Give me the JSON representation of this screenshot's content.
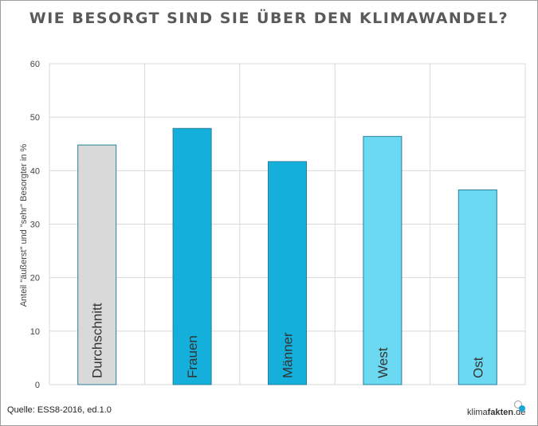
{
  "chart_data": {
    "type": "bar",
    "title": "WIE BESORGT SIND SIE ÜBER DEN KLIMAWANDEL?",
    "ylabel": "Anteil \"äußerst\" und \"sehr\" Besorgter in %",
    "xlabel": "",
    "categories": [
      "Durchschnitt",
      "Frauen",
      "Männer",
      "West",
      "Ost"
    ],
    "values": [
      44.8,
      47.9,
      41.7,
      46.4,
      36.4
    ],
    "colors": [
      "#d9d9d9",
      "#14b0db",
      "#14b0db",
      "#6bd9f2",
      "#6bd9f2"
    ],
    "ylim": [
      0,
      60
    ],
    "yticks": [
      "0",
      "10",
      "20",
      "30",
      "40",
      "50",
      "60"
    ],
    "grid": true,
    "legend": "none"
  },
  "footer": {
    "source": "Quelle: ESS8-2016, ed.1.0",
    "logo_prefix": "klima",
    "logo_strong": "fakten",
    "logo_suffix": ".de"
  }
}
